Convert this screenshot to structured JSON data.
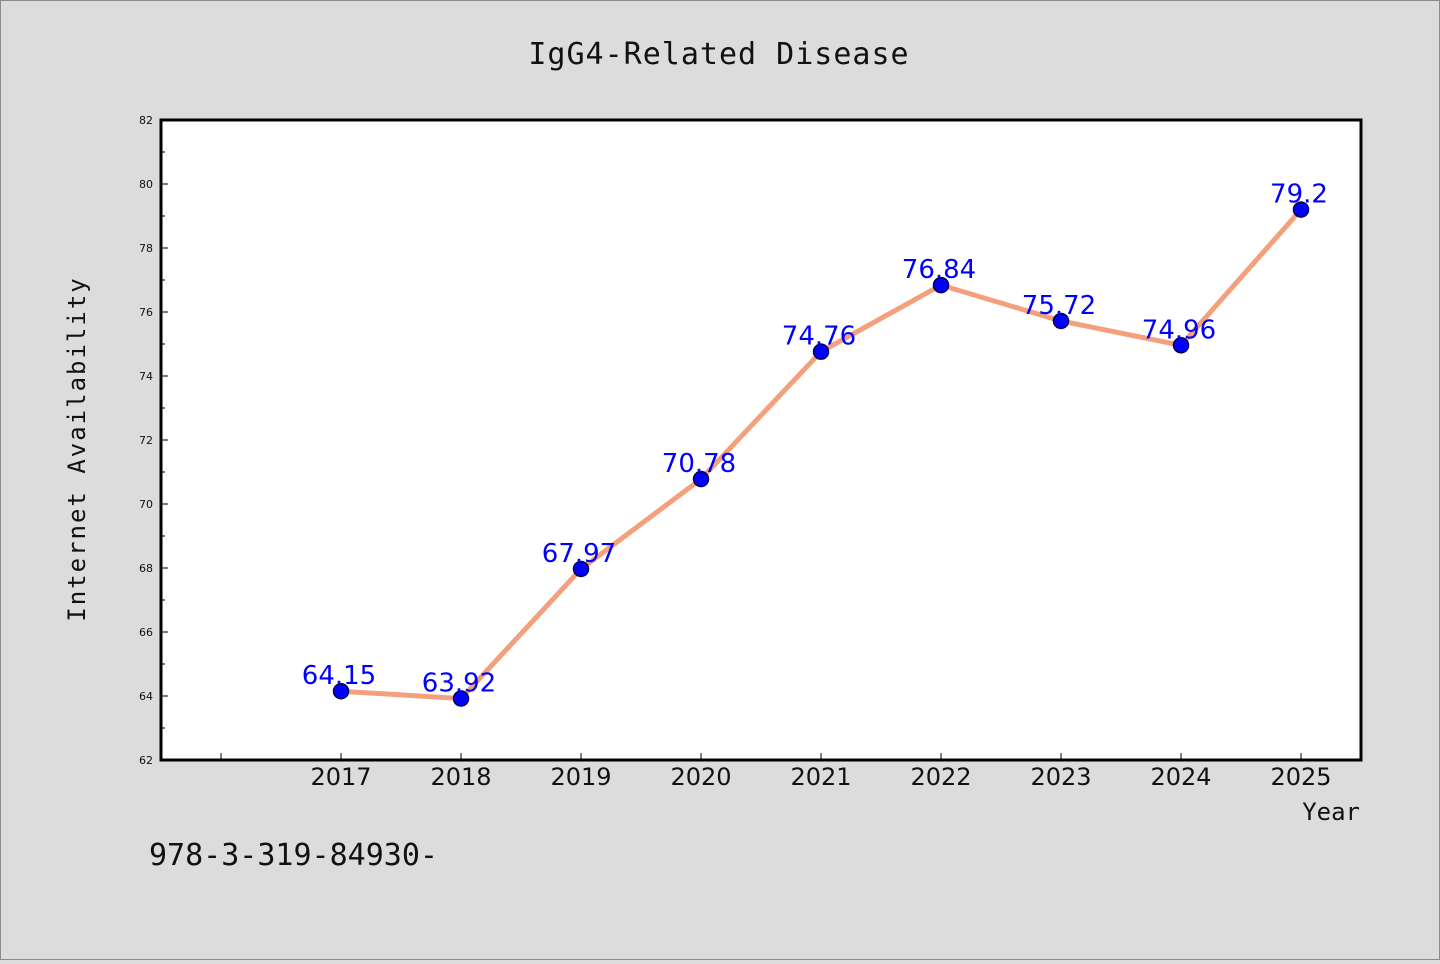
{
  "chart_data": {
    "type": "line",
    "title": "IgG4-Related Disease",
    "xlabel": "Year",
    "ylabel": "Internet Availability",
    "categories": [
      "2017",
      "2018",
      "2019",
      "2020",
      "2021",
      "2022",
      "2023",
      "2024",
      "2025"
    ],
    "series": [
      {
        "values": [
          64.15,
          63.92,
          67.97,
          70.78,
          74.76,
          76.84,
          75.72,
          74.96,
          79.2
        ]
      }
    ],
    "data_labels": [
      "64.15",
      "63.92",
      "67.97",
      "70.78",
      "74.76",
      "76.84",
      "75.72",
      "74.96",
      "79.2"
    ],
    "ylim": [
      62,
      82
    ],
    "yticks": [
      "62",
      "64",
      "66",
      "68",
      "70",
      "72",
      "74",
      "76",
      "78",
      "80",
      "82"
    ],
    "grid": false,
    "line_color": "#f4a07c",
    "marker_color": "#0000ff",
    "label_color": "#0000ff"
  },
  "annotation": "978-3-319-84930-"
}
